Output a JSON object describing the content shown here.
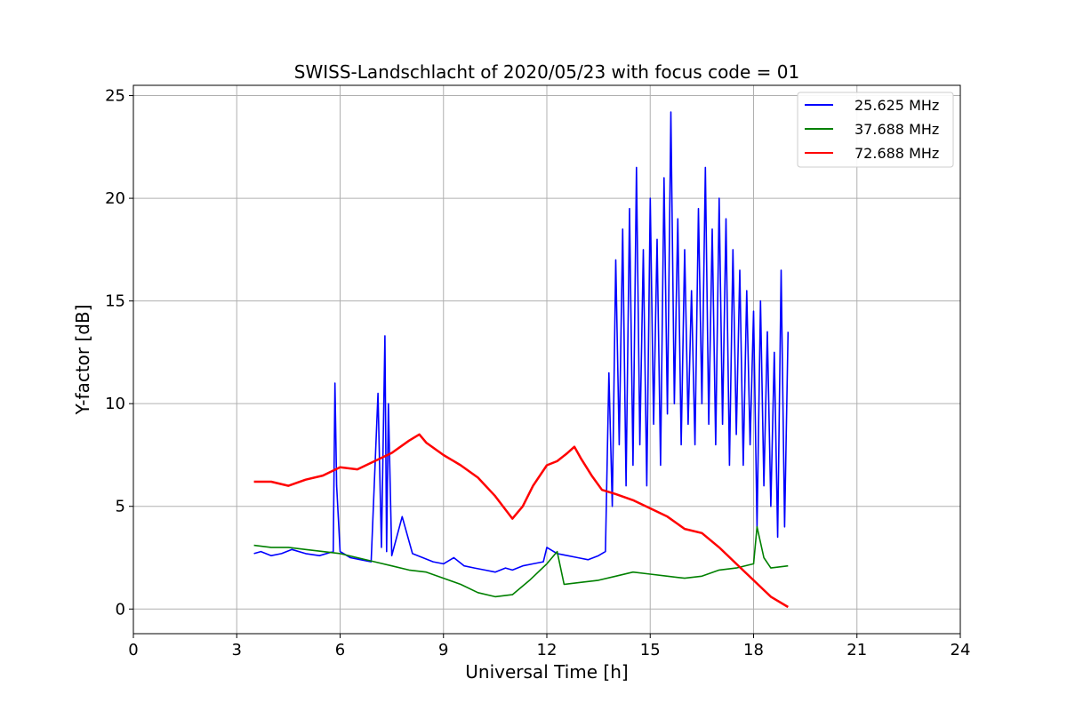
{
  "chart_data": {
    "type": "line",
    "title": "SWISS-Landschlacht of 2020/05/23 with focus code = 01",
    "xlabel": "Universal Time [h]",
    "ylabel": "Y-factor [dB]",
    "xlim": [
      0,
      24
    ],
    "ylim": [
      -1.2,
      25.5
    ],
    "xticks": [
      0,
      3,
      6,
      9,
      12,
      15,
      18,
      21,
      24
    ],
    "yticks": [
      0,
      5,
      10,
      15,
      20,
      25
    ],
    "grid": true,
    "legend_position": "top-right",
    "series": [
      {
        "name": "25.625 MHz",
        "color": "#0000ff",
        "x": [
          3.5,
          3.7,
          4.0,
          4.3,
          4.6,
          5.0,
          5.4,
          5.8,
          5.85,
          5.9,
          6.0,
          6.3,
          6.6,
          6.9,
          7.1,
          7.2,
          7.3,
          7.35,
          7.4,
          7.5,
          7.8,
          8.1,
          8.4,
          8.7,
          9.0,
          9.3,
          9.6,
          9.9,
          10.2,
          10.5,
          10.8,
          11.0,
          11.3,
          11.6,
          11.9,
          12.0,
          12.3,
          12.6,
          12.9,
          13.2,
          13.5,
          13.7,
          13.8,
          13.9,
          14.0,
          14.1,
          14.2,
          14.3,
          14.4,
          14.5,
          14.6,
          14.7,
          14.8,
          14.9,
          15.0,
          15.1,
          15.2,
          15.3,
          15.4,
          15.5,
          15.6,
          15.7,
          15.8,
          15.9,
          16.0,
          16.1,
          16.2,
          16.3,
          16.4,
          16.5,
          16.6,
          16.7,
          16.8,
          16.9,
          17.0,
          17.1,
          17.2,
          17.3,
          17.4,
          17.5,
          17.6,
          17.7,
          17.8,
          17.9,
          18.0,
          18.1,
          18.2,
          18.3,
          18.4,
          18.5,
          18.6,
          18.7,
          18.8,
          18.9,
          19.0
        ],
        "y": [
          2.7,
          2.8,
          2.6,
          2.7,
          2.9,
          2.7,
          2.6,
          2.8,
          11.0,
          6.0,
          2.8,
          2.5,
          2.4,
          2.3,
          10.5,
          3.0,
          13.3,
          2.8,
          10.0,
          2.6,
          4.5,
          2.7,
          2.5,
          2.3,
          2.2,
          2.5,
          2.1,
          2.0,
          1.9,
          1.8,
          2.0,
          1.9,
          2.1,
          2.2,
          2.3,
          3.0,
          2.7,
          2.6,
          2.5,
          2.4,
          2.6,
          2.8,
          11.5,
          5.0,
          17.0,
          8.0,
          18.5,
          6.0,
          19.5,
          7.0,
          21.5,
          8.0,
          17.5,
          6.0,
          20.0,
          9.0,
          18.0,
          7.0,
          21.0,
          9.5,
          24.2,
          10.0,
          19.0,
          8.0,
          17.5,
          9.0,
          15.5,
          8.0,
          19.5,
          10.0,
          21.5,
          9.0,
          18.5,
          8.0,
          20.0,
          9.0,
          19.0,
          7.0,
          17.5,
          8.5,
          16.5,
          7.0,
          15.5,
          8.0,
          14.5,
          4.0,
          15.0,
          6.0,
          13.5,
          5.0,
          12.5,
          3.5,
          16.5,
          4.0,
          13.5
        ]
      },
      {
        "name": "37.688 MHz",
        "color": "#008000",
        "x": [
          3.5,
          4.0,
          4.5,
          5.0,
          5.5,
          6.0,
          6.5,
          7.0,
          7.5,
          8.0,
          8.5,
          9.0,
          9.5,
          10.0,
          10.5,
          11.0,
          11.5,
          12.0,
          12.3,
          12.5,
          13.0,
          13.5,
          14.0,
          14.5,
          15.0,
          15.5,
          16.0,
          16.5,
          17.0,
          17.5,
          18.0,
          18.1,
          18.3,
          18.5,
          19.0
        ],
        "y": [
          3.1,
          3.0,
          3.0,
          2.9,
          2.8,
          2.7,
          2.5,
          2.3,
          2.1,
          1.9,
          1.8,
          1.5,
          1.2,
          0.8,
          0.6,
          0.7,
          1.4,
          2.2,
          2.8,
          1.2,
          1.3,
          1.4,
          1.6,
          1.8,
          1.7,
          1.6,
          1.5,
          1.6,
          1.9,
          2.0,
          2.2,
          4.0,
          2.5,
          2.0,
          2.1
        ]
      },
      {
        "name": "72.688 MHz",
        "color": "#ff0000",
        "x": [
          3.5,
          4.0,
          4.5,
          5.0,
          5.5,
          6.0,
          6.5,
          7.0,
          7.5,
          8.0,
          8.3,
          8.5,
          9.0,
          9.5,
          10.0,
          10.5,
          11.0,
          11.3,
          11.6,
          12.0,
          12.3,
          12.6,
          12.8,
          13.0,
          13.3,
          13.6,
          14.0,
          14.5,
          15.0,
          15.5,
          16.0,
          16.5,
          17.0,
          17.5,
          18.0,
          18.5,
          19.0
        ],
        "y": [
          6.2,
          6.2,
          6.0,
          6.3,
          6.5,
          6.9,
          6.8,
          7.2,
          7.6,
          8.2,
          8.5,
          8.1,
          7.5,
          7.0,
          6.4,
          5.5,
          4.4,
          5.0,
          6.0,
          7.0,
          7.2,
          7.6,
          7.9,
          7.3,
          6.5,
          5.8,
          5.6,
          5.3,
          4.9,
          4.5,
          3.9,
          3.7,
          3.0,
          2.2,
          1.4,
          0.6,
          0.1
        ]
      }
    ]
  }
}
